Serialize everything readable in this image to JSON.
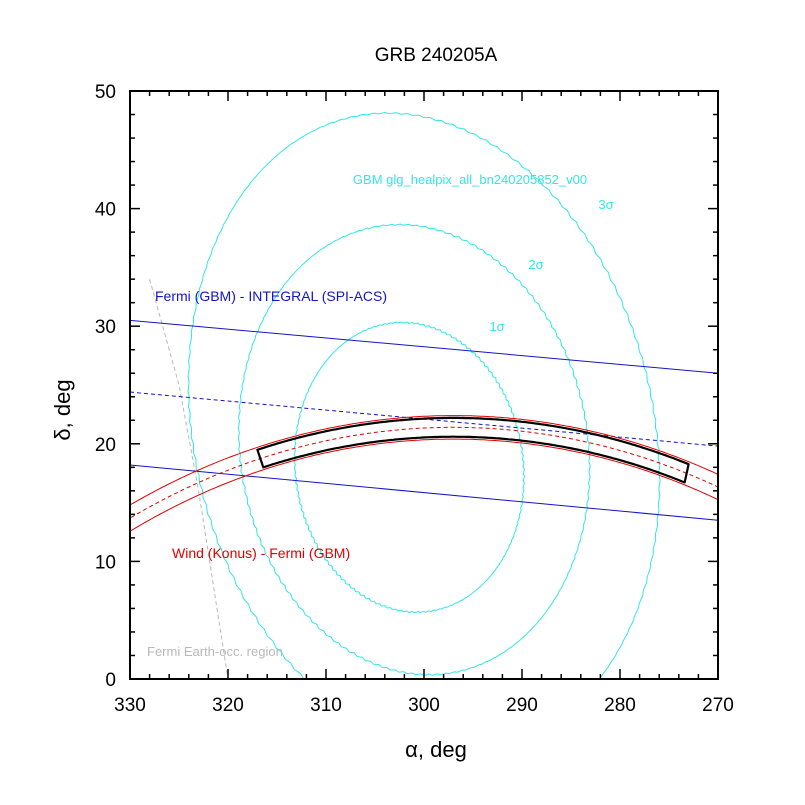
{
  "chart_data": {
    "type": "line",
    "title": "GRB 240205A",
    "xlabel": "α, deg",
    "ylabel": "δ, deg",
    "xlim": [
      330,
      270
    ],
    "ylim": [
      0,
      50
    ],
    "x_ticks": [
      330,
      320,
      310,
      300,
      290,
      280,
      270
    ],
    "y_ticks": [
      0,
      10,
      20,
      30,
      40,
      50
    ],
    "x_tick_labels": [
      "330",
      "320",
      "310",
      "300",
      "290",
      "280",
      "270"
    ],
    "y_tick_labels": [
      "0",
      "10",
      "20",
      "30",
      "40",
      "50"
    ],
    "colors": {
      "gbm": "#33e6e6",
      "integral": "#1414c8",
      "konus": "#e00000",
      "earth": "#b8b8b8",
      "box": "#000000"
    },
    "annotations": {
      "gbm_label": "GBM glg_healpix_all_bn240205852_v00",
      "gbm_1sigma": "1σ",
      "gbm_2sigma": "2σ",
      "gbm_3sigma": "3σ",
      "integral_label": "Fermi (GBM) - INTEGRAL (SPI-ACS)",
      "konus_label": "Wind (Konus) - Fermi (GBM)",
      "earth_label": "Fermi Earth-occ. region"
    },
    "gbm_contours": [
      {
        "name": "1σ",
        "center": [
          301.5,
          18.0
        ],
        "semi_axes": [
          11.5,
          12.5
        ],
        "rotation": 0.45
      },
      {
        "name": "2σ",
        "center": [
          301.0,
          19.5
        ],
        "semi_axes": [
          17.5,
          19.5
        ],
        "rotation": 0.45
      },
      {
        "name": "3σ",
        "center": [
          300.0,
          21.0
        ],
        "semi_axes": [
          23.0,
          28.0
        ],
        "rotation": 0.45
      }
    ],
    "integral_annulus": {
      "upper": [
        [
          330,
          30.5
        ],
        [
          270,
          26.0
        ]
      ],
      "center": [
        [
          330,
          24.4
        ],
        [
          270,
          19.8
        ]
      ],
      "lower": [
        [
          330,
          18.2
        ],
        [
          270,
          13.5
        ]
      ]
    },
    "konus_annulus": {
      "center_ra": 297.0,
      "center_dec": -53.0,
      "radius_center": 74.4,
      "radius_inner": 73.4,
      "radius_outer": 75.4
    },
    "error_box": {
      "ra_range": [
        273,
        317
      ],
      "upper_edge_dec_max": 22.2,
      "lower_edge_dec_max": 20.6
    },
    "earth_boundary": [
      [
        328,
        34
      ],
      [
        325,
        25
      ],
      [
        323,
        16
      ],
      [
        321.5,
        8
      ],
      [
        320,
        0
      ]
    ]
  }
}
